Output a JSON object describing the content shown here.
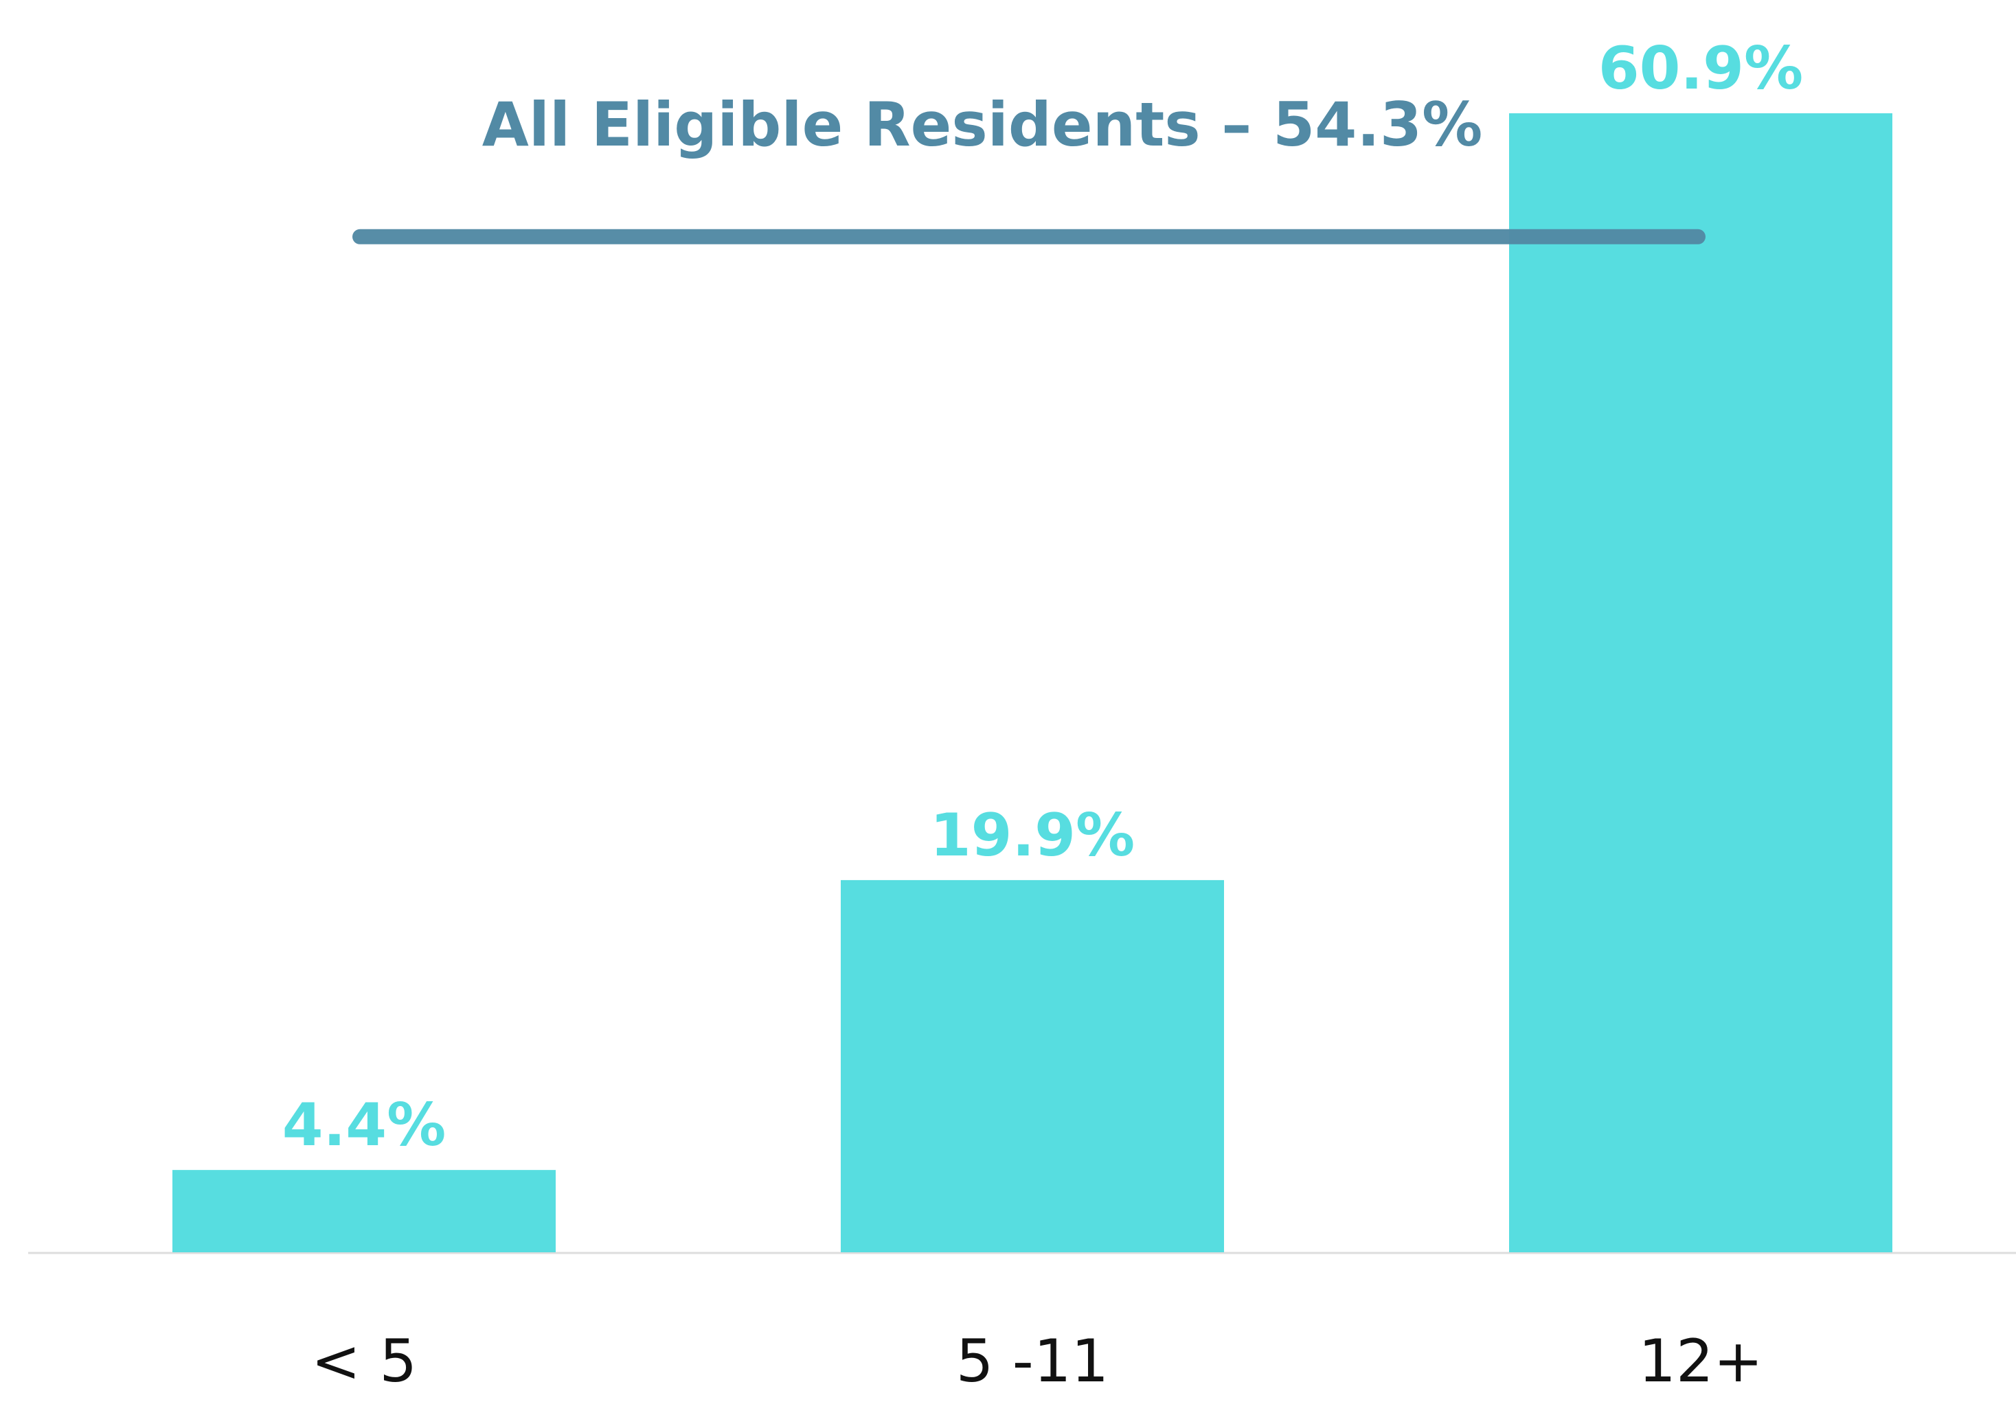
{
  "chart_data": {
    "type": "bar",
    "categories": [
      "< 5",
      "5 -11",
      "12+"
    ],
    "values": [
      4.4,
      19.9,
      60.9
    ],
    "value_labels": [
      "4.4%",
      "19.9%",
      "60.9%"
    ],
    "color": "#57dde0",
    "reference_line": {
      "value": 54.3,
      "label": "All Eligible Residents – 54.3%",
      "color": "#528aa5"
    }
  }
}
